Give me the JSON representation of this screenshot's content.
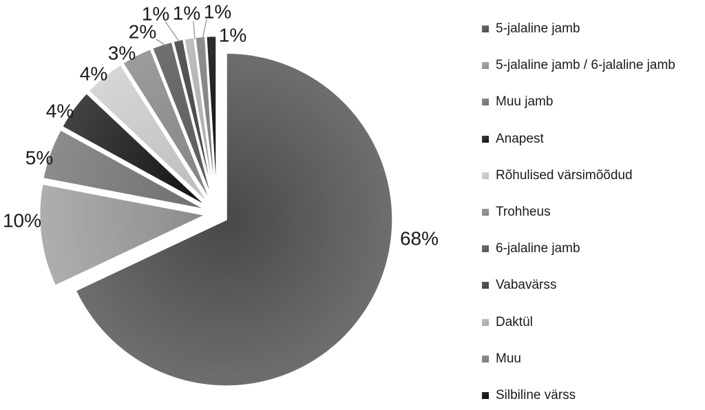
{
  "figure": {
    "background": "#ffffff",
    "text_color": "#1a1a1a",
    "leader_line_color": "#999999"
  },
  "chart_data": {
    "type": "pie",
    "title": "",
    "unit": "%",
    "direction": "clockwise",
    "start_angle_deg": 0,
    "exploded": true,
    "legend_position": "right",
    "categories": [
      "5-jalaline jamb",
      "5-jalaline jamb / 6-jalaline jamb",
      "Muu jamb",
      "Anapest",
      "Rõhulised värsimõõdud",
      "Trohheus",
      "6-jalaline jamb",
      "Vabavärss",
      "Daktül",
      "Muu",
      "Silbiline värss"
    ],
    "values": [
      68,
      10,
      5,
      4,
      4,
      3,
      2,
      1,
      1,
      1,
      1
    ],
    "data_labels": [
      "68%",
      "10%",
      "5%",
      "4%",
      "4%",
      "3%",
      "2%",
      "1%",
      "1%",
      "1%",
      "1%"
    ],
    "slices": [
      {
        "label": "5-jalaline jamb",
        "value": 68,
        "data_label": "68%",
        "color": "#555555",
        "color_dark": "#484848",
        "color_light": "#6e6e6e"
      },
      {
        "label": "5-jalaline jamb / 6-jalaline jamb",
        "value": 10,
        "data_label": "10%",
        "color": "#a5a5a5",
        "color_dark": "#8c8c8c",
        "color_light": "#aeaeae"
      },
      {
        "label": "Muu jamb",
        "value": 5,
        "data_label": "5%",
        "color": "#7f7f7f",
        "color_dark": "#6e6e6e",
        "color_light": "#8c8c8c"
      },
      {
        "label": "Anapest",
        "value": 4,
        "data_label": "4%",
        "color": "#2b2b2b",
        "color_dark": "#101010",
        "color_light": "#424242"
      },
      {
        "label": "Rõhulised värsimõõdud",
        "value": 4,
        "data_label": "4%",
        "color": "#cacaca",
        "color_dark": "#bcbcbc",
        "color_light": "#d6d6d6"
      },
      {
        "label": "Trohheus",
        "value": 3,
        "data_label": "3%",
        "color": "#8f8f8f",
        "color_dark": "#828282",
        "color_light": "#9c9c9c"
      },
      {
        "label": "6-jalaline jamb",
        "value": 2,
        "data_label": "2%",
        "color": "#666666",
        "color_dark": "#585858",
        "color_light": "#707070"
      },
      {
        "label": "Vabavärss",
        "value": 1,
        "data_label": "1%",
        "color": "#4c4c4c",
        "color_dark": "#424242",
        "color_light": "#585858"
      },
      {
        "label": "Daktül",
        "value": 1,
        "data_label": "1%",
        "color": "#b2b2b2",
        "color_dark": "#a8a8a8",
        "color_light": "#bebebe"
      },
      {
        "label": "Muu",
        "value": 1,
        "data_label": "1%",
        "color": "#858585",
        "color_dark": "#7c7c7c",
        "color_light": "#8e8e8e"
      },
      {
        "label": "Silbiline värss",
        "value": 1,
        "data_label": "1%",
        "color": "#1f1f1f",
        "color_dark": "#0c0c0c",
        "color_light": "#2e2e2e"
      }
    ]
  }
}
